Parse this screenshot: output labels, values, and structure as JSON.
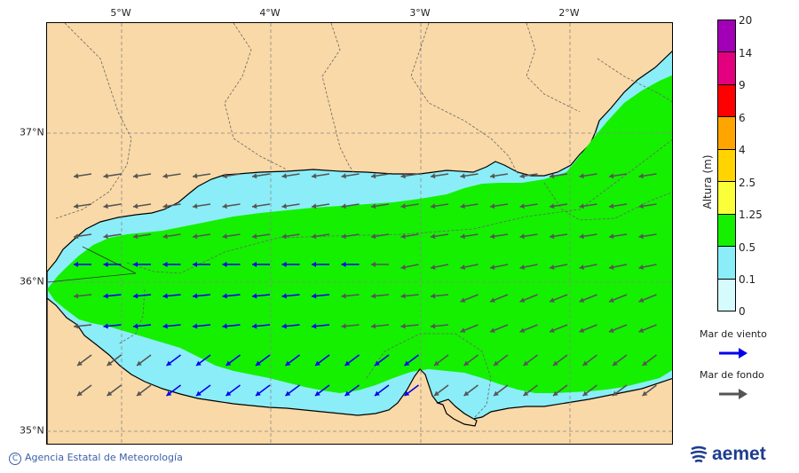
{
  "map": {
    "lon_ticks": [
      {
        "label": "5°W",
        "lon": -5
      },
      {
        "label": "4°W",
        "lon": -4
      },
      {
        "label": "3°W",
        "lon": -3
      },
      {
        "label": "2°W",
        "lon": -2
      }
    ],
    "lat_ticks": [
      {
        "label": "37°N",
        "lat": 37
      },
      {
        "label": "36°N",
        "lat": 36
      },
      {
        "label": "35°N",
        "lat": 35
      }
    ],
    "extent": {
      "lon_min": -5.5,
      "lon_max": -1.3,
      "lat_min": 34.92,
      "lat_max": 37.75
    },
    "colors": {
      "land": "#f9d9a7",
      "sea_low": "#8bedf7",
      "sea_mid": "#14f000",
      "grid": "#888888"
    }
  },
  "legend": {
    "title": "Altura (m)",
    "bins": [
      {
        "label": "20",
        "color": "#a100b6"
      },
      {
        "label": "14",
        "color": "#e3007f"
      },
      {
        "label": "9",
        "color": "#ff0000"
      },
      {
        "label": "6",
        "color": "#ffa500"
      },
      {
        "label": "4",
        "color": "#ffd400"
      },
      {
        "label": "2.5",
        "color": "#fbff3a"
      },
      {
        "label": "1.25",
        "color": "#14f000"
      },
      {
        "label": "0.5",
        "color": "#8bedf7"
      },
      {
        "label": "0.1",
        "color": "#d6fbfd"
      },
      {
        "label": "0",
        "color": ""
      }
    ],
    "wind_sea": {
      "label": "Mar de viento",
      "color": "#0000ee"
    },
    "swell": {
      "label": "Mar de fondo",
      "color": "#555555"
    }
  },
  "footer": {
    "credit": "Agencia Estatal de Meteorología",
    "copyright_symbol": "C",
    "brand": "aemet"
  }
}
